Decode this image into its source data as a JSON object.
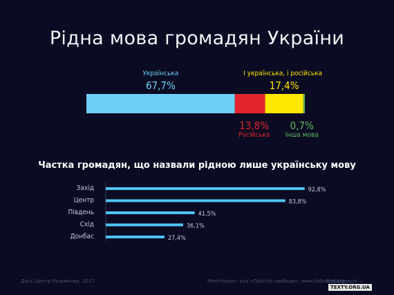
{
  "title": "Рідна мова громадян України",
  "colors": {
    "background": "#0b0c23",
    "ukrainian": "#6ecff6",
    "russian": "#e3262d",
    "both": "#ffe800",
    "other": "#5cb85c",
    "regional_bar": "#4fc3f7"
  },
  "chart_data": [
    {
      "type": "bar",
      "orientation": "horizontal-stacked",
      "title": "Рідна мова громадян України",
      "series": [
        {
          "name": "Українська",
          "value": 67.7,
          "label": "67,7%",
          "color": "#6ecff6"
        },
        {
          "name": "Російська",
          "value": 13.8,
          "label": "13,8%",
          "color": "#e3262d"
        },
        {
          "name": "І українська, і російська",
          "value": 17.4,
          "label": "17,4%",
          "color": "#ffe800"
        },
        {
          "name": "Інша мова",
          "value": 0.7,
          "label": "0,7%",
          "color": "#5cb85c"
        }
      ]
    },
    {
      "type": "bar",
      "orientation": "horizontal",
      "title": "Частка громадян, що назвали рідною лише українську мову",
      "categories": [
        "Захід",
        "Центр",
        "Південь",
        "Схід",
        "Донбас"
      ],
      "values": [
        92.8,
        83.8,
        41.5,
        36.1,
        27.4
      ],
      "labels": [
        "92,8%",
        "83,8%",
        "41,5%",
        "36,1%",
        "27,4%"
      ],
      "xlim": [
        0,
        100
      ]
    }
  ],
  "footer": {
    "source": "Дані: Центр Разумкова, 2017",
    "monitoring": "Моніторинг: рух «Простір свободи», www.dobrovol.org",
    "viz_label": "Візуалізація —",
    "brand": "TEXTY.ORG.UA"
  }
}
